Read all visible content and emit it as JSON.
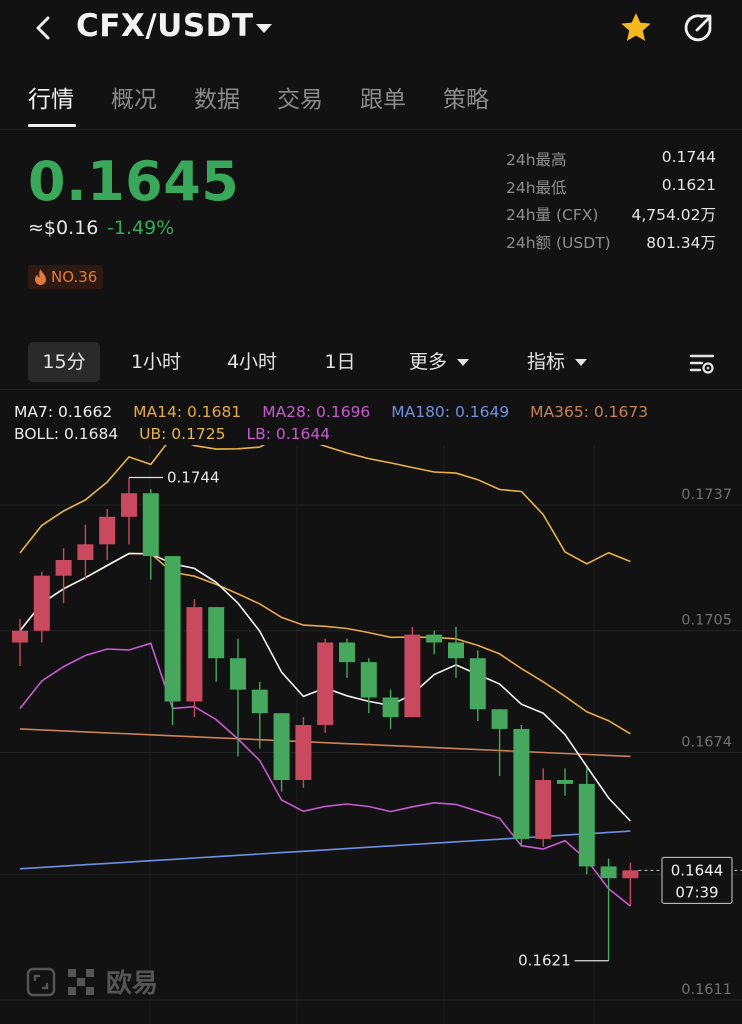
{
  "header": {
    "pair": "CFX/USDT"
  },
  "tabs": [
    "行情",
    "概况",
    "数据",
    "交易",
    "跟单",
    "策略"
  ],
  "ticker": {
    "price": "0.1645",
    "usd_approx": "≈$0.16",
    "change_pct": "-1.49%",
    "rank": "NO.36",
    "stats": [
      {
        "label": "24h最高",
        "value": "0.1744"
      },
      {
        "label": "24h最低",
        "value": "0.1621"
      },
      {
        "label": "24h量 (CFX)",
        "value": "4,754.02万"
      },
      {
        "label": "24h额 (USDT)",
        "value": "801.34万"
      }
    ]
  },
  "intervals": {
    "items": [
      "15分",
      "1小时",
      "4小时",
      "1日"
    ],
    "more": "更多",
    "indicators": "指标"
  },
  "indicators": {
    "ma7": "MA7: 0.1662",
    "ma14": "MA14: 0.1681",
    "ma28": "MA28: 0.1696",
    "ma180": "MA180: 0.1649",
    "ma365": "MA365: 0.1673",
    "boll": "BOLL: 0.1684",
    "ub": "UB: 0.1725",
    "lb": "LB: 0.1644"
  },
  "colors": {
    "up": "#c94a5f",
    "down": "#46a85c",
    "ma7": "#f0f0f0",
    "ma14": "#e6a94a",
    "ma28": "#c75bd0",
    "ma180": "#6f8fe0",
    "ma365": "#c9825a",
    "boll": "#e8e8e8",
    "ub": "#e8b34a",
    "lb": "#c75bd0"
  },
  "chart_data": {
    "type": "candlestick",
    "y_ticks": [
      "0.1737",
      "0.1705",
      "0.1674",
      "0.1643",
      "0.1611"
    ],
    "ylim": [
      0.1611,
      0.1737
    ],
    "current_price_label": "0.1644",
    "countdown": "07:39",
    "high_marker": "0.1744",
    "low_marker": "0.1621",
    "candles": [
      {
        "o": 0.1702,
        "h": 0.1708,
        "l": 0.1696,
        "c": 0.1705
      },
      {
        "o": 0.1705,
        "h": 0.172,
        "l": 0.1702,
        "c": 0.1719
      },
      {
        "o": 0.1719,
        "h": 0.1726,
        "l": 0.1712,
        "c": 0.1723
      },
      {
        "o": 0.1723,
        "h": 0.1732,
        "l": 0.1718,
        "c": 0.1727
      },
      {
        "o": 0.1727,
        "h": 0.1736,
        "l": 0.1723,
        "c": 0.1734
      },
      {
        "o": 0.1734,
        "h": 0.1744,
        "l": 0.1727,
        "c": 0.174
      },
      {
        "o": 0.174,
        "h": 0.1741,
        "l": 0.1718,
        "c": 0.1724
      },
      {
        "o": 0.1724,
        "h": 0.1724,
        "l": 0.1681,
        "c": 0.1687
      },
      {
        "o": 0.1687,
        "h": 0.1713,
        "l": 0.1683,
        "c": 0.1711
      },
      {
        "o": 0.1711,
        "h": 0.1711,
        "l": 0.1692,
        "c": 0.1698
      },
      {
        "o": 0.1698,
        "h": 0.1703,
        "l": 0.1673,
        "c": 0.169
      },
      {
        "o": 0.169,
        "h": 0.1692,
        "l": 0.1675,
        "c": 0.1684
      },
      {
        "o": 0.1684,
        "h": 0.1684,
        "l": 0.1664,
        "c": 0.1667
      },
      {
        "o": 0.1667,
        "h": 0.1683,
        "l": 0.1665,
        "c": 0.1681
      },
      {
        "o": 0.1681,
        "h": 0.1703,
        "l": 0.1679,
        "c": 0.1702
      },
      {
        "o": 0.1702,
        "h": 0.1703,
        "l": 0.1693,
        "c": 0.1697
      },
      {
        "o": 0.1697,
        "h": 0.1698,
        "l": 0.1684,
        "c": 0.1688
      },
      {
        "o": 0.1688,
        "h": 0.169,
        "l": 0.168,
        "c": 0.1683
      },
      {
        "o": 0.1683,
        "h": 0.1706,
        "l": 0.1683,
        "c": 0.1704
      },
      {
        "o": 0.1704,
        "h": 0.1705,
        "l": 0.1699,
        "c": 0.1702
      },
      {
        "o": 0.1702,
        "h": 0.1706,
        "l": 0.1693,
        "c": 0.1698
      },
      {
        "o": 0.1698,
        "h": 0.17,
        "l": 0.1682,
        "c": 0.1685
      },
      {
        "o": 0.1685,
        "h": 0.1685,
        "l": 0.1668,
        "c": 0.168
      },
      {
        "o": 0.168,
        "h": 0.1681,
        "l": 0.165,
        "c": 0.1652
      },
      {
        "o": 0.1652,
        "h": 0.167,
        "l": 0.165,
        "c": 0.1667
      },
      {
        "o": 0.1667,
        "h": 0.167,
        "l": 0.1663,
        "c": 0.1666
      },
      {
        "o": 0.1666,
        "h": 0.167,
        "l": 0.1643,
        "c": 0.1645
      },
      {
        "o": 0.1645,
        "h": 0.1647,
        "l": 0.1621,
        "c": 0.1642
      },
      {
        "o": 0.1642,
        "h": 0.1646,
        "l": 0.1635,
        "c": 0.1644
      }
    ]
  }
}
